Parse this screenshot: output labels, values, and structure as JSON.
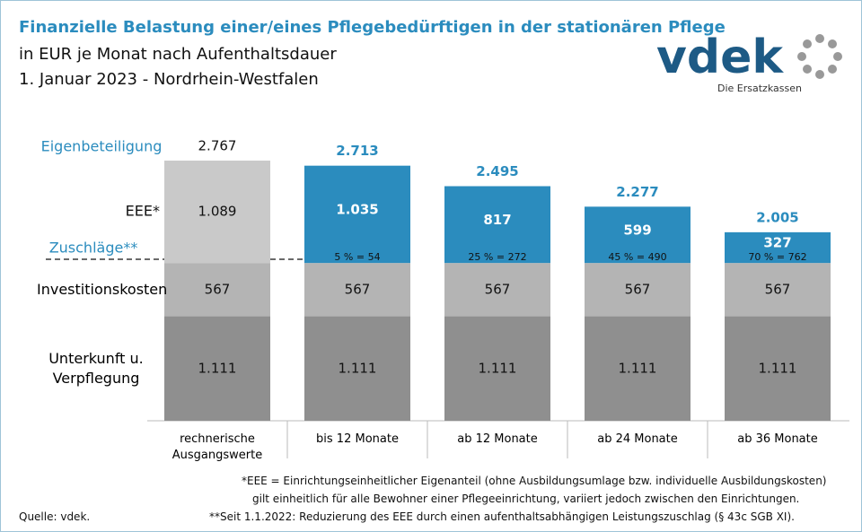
{
  "chart_data": {
    "type": "stacked-bar",
    "title": "Finanzielle Belastung einer/eines Pflegebedürftigen in der stationären Pflege",
    "subtitle": "in EUR je Monat nach Aufenthaltsdauer",
    "subtitle2": "1. Januar 2023 - Nordrhein-Westfalen",
    "categories": [
      "rechnerische Ausgangswerte",
      "bis 12 Monate",
      "ab 12 Monate",
      "ab 24 Monate",
      "ab 36 Monate"
    ],
    "series": [
      {
        "name": "Unterkunft u. Verpflegung",
        "color": "#8f8f8f",
        "values": [
          1111,
          1111,
          1111,
          1111,
          1111
        ],
        "value_labels": [
          "1.111",
          "1.111",
          "1.111",
          "1.111",
          "1.111"
        ]
      },
      {
        "name": "Investitionskosten",
        "color": "#b4b4b4",
        "values": [
          567,
          567,
          567,
          567,
          567
        ]
      },
      {
        "name": "EEE*",
        "colors": [
          "#c9c9c9",
          "#2b8cbe",
          "#2b8cbe",
          "#2b8cbe",
          "#2b8cbe"
        ],
        "values": [
          1089,
          1035,
          817,
          599,
          327
        ],
        "value_labels": [
          "1.089",
          "1.035",
          "817",
          "599",
          "327"
        ]
      }
    ],
    "totals": {
      "name": "Eigenbeteiligung",
      "values": [
        2767,
        2713,
        2495,
        2277,
        2005
      ],
      "value_labels": [
        "2.767",
        "2.713",
        "2.495",
        "2.277",
        "2.005"
      ],
      "colors": [
        "#111111",
        "#2b8cbe",
        "#2b8cbe",
        "#2b8cbe",
        "#2b8cbe"
      ]
    },
    "surcharges": {
      "name": "Zuschläge**",
      "labels": [
        null,
        "5 % = 54",
        "25 % = 272",
        "45 % = 490",
        "70 % = 762"
      ]
    },
    "footnotes": [
      "*EEE = Einrichtungseinheitlicher  Eigenanteil (ohne Ausbildungsumlage bzw. individuelle Ausbildungskosten)",
      "gilt einheitlich  für alle Bewohner einer Pflegeeinrichtung,  variiert jedoch zwischen den Einrichtungen.",
      "**Seit 1.1.2022: Reduzierung des EEE durch einen aufenthaltsabhängigen Leistungszuschlag  (§ 43c SGB XI)."
    ],
    "source": "Quelle: vdek.",
    "logo": {
      "name": "vdek",
      "tagline": "Die Ersatzkassen"
    }
  }
}
